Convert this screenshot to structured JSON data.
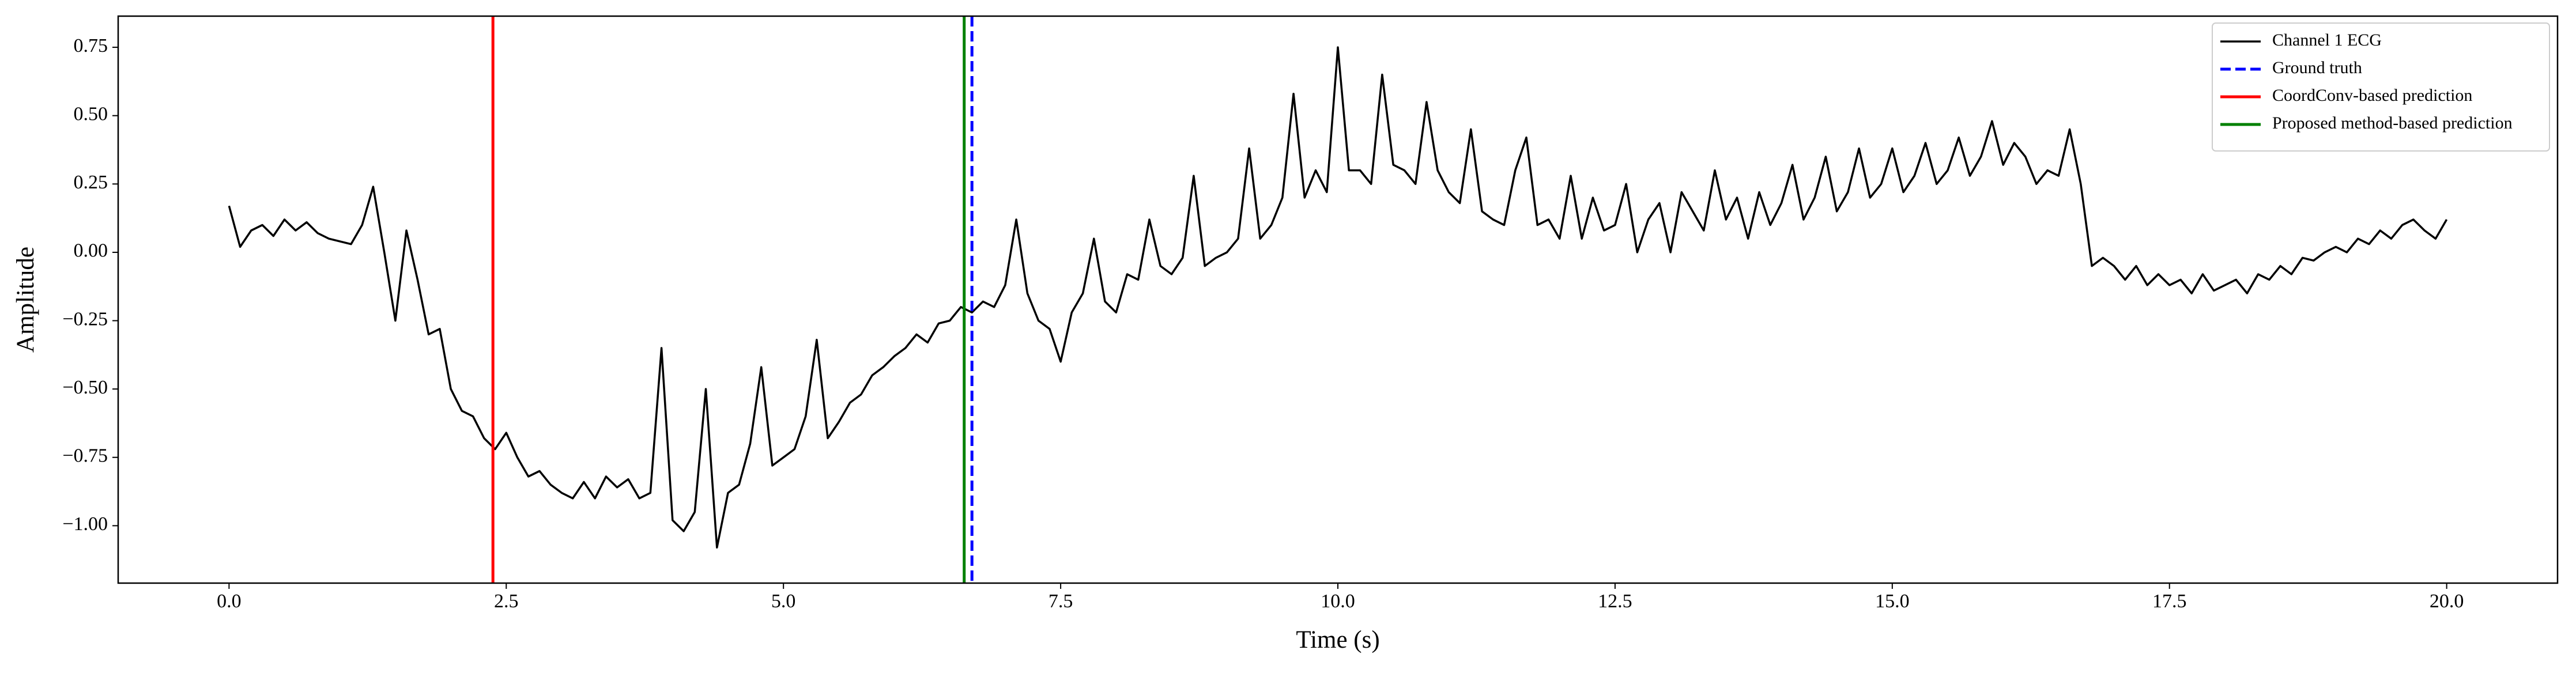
{
  "chart_data": {
    "type": "line",
    "xlabel": "Time (s)",
    "ylabel": "Amplitude",
    "x": [
      0,
      0.1,
      0.2,
      0.3,
      0.4,
      0.5,
      0.6,
      0.7,
      0.8,
      0.9,
      1,
      1.1,
      1.2,
      1.3,
      1.4,
      1.5,
      1.6,
      1.7,
      1.8,
      1.9,
      2,
      2.1,
      2.2,
      2.3,
      2.4,
      2.5,
      2.6,
      2.7,
      2.8,
      2.9,
      3,
      3.1,
      3.2,
      3.3,
      3.4,
      3.5,
      3.6,
      3.7,
      3.8,
      3.9,
      4,
      4.1,
      4.2,
      4.3,
      4.4,
      4.5,
      4.6,
      4.7,
      4.8,
      4.9,
      5,
      5.1,
      5.2,
      5.3,
      5.4,
      5.5,
      5.6,
      5.7,
      5.8,
      5.9,
      6,
      6.1,
      6.2,
      6.3,
      6.4,
      6.5,
      6.6,
      6.7,
      6.8,
      6.9,
      7,
      7.1,
      7.2,
      7.3,
      7.4,
      7.5,
      7.6,
      7.7,
      7.8,
      7.9,
      8,
      8.1,
      8.2,
      8.3,
      8.4,
      8.5,
      8.6,
      8.7,
      8.8,
      8.9,
      9,
      9.1,
      9.2,
      9.3,
      9.4,
      9.5,
      9.6,
      9.7,
      9.8,
      9.9,
      10,
      10.1,
      10.2,
      10.3,
      10.4,
      10.5,
      10.6,
      10.7,
      10.8,
      10.9,
      11,
      11.1,
      11.2,
      11.3,
      11.4,
      11.5,
      11.6,
      11.7,
      11.8,
      11.9,
      12,
      12.1,
      12.2,
      12.3,
      12.4,
      12.5,
      12.6,
      12.7,
      12.8,
      12.9,
      13,
      13.1,
      13.2,
      13.3,
      13.4,
      13.5,
      13.6,
      13.7,
      13.8,
      13.9,
      14,
      14.1,
      14.2,
      14.3,
      14.4,
      14.5,
      14.6,
      14.7,
      14.8,
      14.9,
      15,
      15.1,
      15.2,
      15.3,
      15.4,
      15.5,
      15.6,
      15.7,
      15.8,
      15.9,
      16,
      16.1,
      16.2,
      16.3,
      16.4,
      16.5,
      16.6,
      16.7,
      16.8,
      16.9,
      17,
      17.1,
      17.2,
      17.3,
      17.4,
      17.5,
      17.6,
      17.7,
      17.8,
      17.9,
      18,
      18.1,
      18.2,
      18.3,
      18.4,
      18.5,
      18.6,
      18.7,
      18.8,
      18.9,
      19,
      19.1,
      19.2,
      19.3,
      19.4,
      19.5,
      19.6,
      19.7,
      19.8,
      19.9,
      20
    ],
    "series": [
      {
        "name": "Channel 1 ECG",
        "color": "#000000",
        "values": [
          0.17,
          0.02,
          0.08,
          0.1,
          0.06,
          0.12,
          0.08,
          0.11,
          0.07,
          0.05,
          0.04,
          0.03,
          0.1,
          0.24,
          0.0,
          -0.25,
          0.08,
          -0.1,
          -0.3,
          -0.28,
          -0.5,
          -0.58,
          -0.6,
          -0.68,
          -0.72,
          -0.66,
          -0.75,
          -0.82,
          -0.8,
          -0.85,
          -0.88,
          -0.9,
          -0.84,
          -0.9,
          -0.82,
          -0.86,
          -0.83,
          -0.9,
          -0.88,
          -0.35,
          -0.98,
          -1.02,
          -0.95,
          -0.5,
          -1.08,
          -0.88,
          -0.85,
          -0.7,
          -0.42,
          -0.78,
          -0.75,
          -0.72,
          -0.6,
          -0.32,
          -0.68,
          -0.62,
          -0.55,
          -0.52,
          -0.45,
          -0.42,
          -0.38,
          -0.35,
          -0.3,
          -0.33,
          -0.26,
          -0.25,
          -0.2,
          -0.22,
          -0.18,
          -0.2,
          -0.12,
          0.12,
          -0.15,
          -0.25,
          -0.28,
          -0.4,
          -0.22,
          -0.15,
          0.05,
          -0.18,
          -0.22,
          -0.08,
          -0.1,
          0.12,
          -0.05,
          -0.08,
          -0.02,
          0.28,
          -0.05,
          -0.02,
          0.0,
          0.05,
          0.38,
          0.05,
          0.1,
          0.2,
          0.58,
          0.2,
          0.3,
          0.22,
          0.75,
          0.3,
          0.3,
          0.25,
          0.65,
          0.32,
          0.3,
          0.25,
          0.55,
          0.3,
          0.22,
          0.18,
          0.45,
          0.15,
          0.12,
          0.1,
          0.3,
          0.42,
          0.1,
          0.12,
          0.05,
          0.28,
          0.05,
          0.2,
          0.08,
          0.1,
          0.25,
          0.0,
          0.12,
          0.18,
          0.0,
          0.22,
          0.15,
          0.08,
          0.3,
          0.12,
          0.2,
          0.05,
          0.22,
          0.1,
          0.18,
          0.32,
          0.12,
          0.2,
          0.35,
          0.15,
          0.22,
          0.38,
          0.2,
          0.25,
          0.38,
          0.22,
          0.28,
          0.4,
          0.25,
          0.3,
          0.42,
          0.28,
          0.35,
          0.48,
          0.32,
          0.4,
          0.35,
          0.25,
          0.3,
          0.28,
          0.45,
          0.25,
          -0.05,
          -0.02,
          -0.05,
          -0.1,
          -0.05,
          -0.12,
          -0.08,
          -0.12,
          -0.1,
          -0.15,
          -0.08,
          -0.14,
          -0.12,
          -0.1,
          -0.15,
          -0.08,
          -0.1,
          -0.05,
          -0.08,
          -0.02,
          -0.03,
          0.0,
          0.02,
          0.0,
          0.05,
          0.03,
          0.08,
          0.05,
          0.1,
          0.12,
          0.08,
          0.05,
          0.12
        ]
      }
    ],
    "vlines": [
      {
        "name": "Ground truth",
        "color": "#0000ff",
        "x": 6.7,
        "linestyle": "dashed"
      },
      {
        "name": "CoordConv-based prediction",
        "color": "#ff0000",
        "x": 2.38,
        "linestyle": "solid"
      },
      {
        "name": "Proposed method-based prediction",
        "color": "#008000",
        "x": 6.63,
        "linestyle": "solid"
      }
    ],
    "xlim": [
      -1,
      21
    ],
    "ylim": [
      -1.21,
      0.864
    ],
    "xticks": [
      {
        "value": 0,
        "label": "0.0"
      },
      {
        "value": 2.5,
        "label": "2.5"
      },
      {
        "value": 5,
        "label": "5.0"
      },
      {
        "value": 7.5,
        "label": "7.5"
      },
      {
        "value": 10,
        "label": "10.0"
      },
      {
        "value": 12.5,
        "label": "12.5"
      },
      {
        "value": 15,
        "label": "15.0"
      },
      {
        "value": 17.5,
        "label": "17.5"
      },
      {
        "value": 20,
        "label": "20.0"
      }
    ],
    "yticks": [
      {
        "value": -1,
        "label": "−1.00"
      },
      {
        "value": -0.75,
        "label": "−0.75"
      },
      {
        "value": -0.5,
        "label": "−0.50"
      },
      {
        "value": -0.25,
        "label": "−0.25"
      },
      {
        "value": 0,
        "label": "0.00"
      },
      {
        "value": 0.25,
        "label": "0.25"
      },
      {
        "value": 0.5,
        "label": "0.50"
      },
      {
        "value": 0.75,
        "label": "0.75"
      }
    ],
    "grid": false,
    "legend": "upper right"
  }
}
